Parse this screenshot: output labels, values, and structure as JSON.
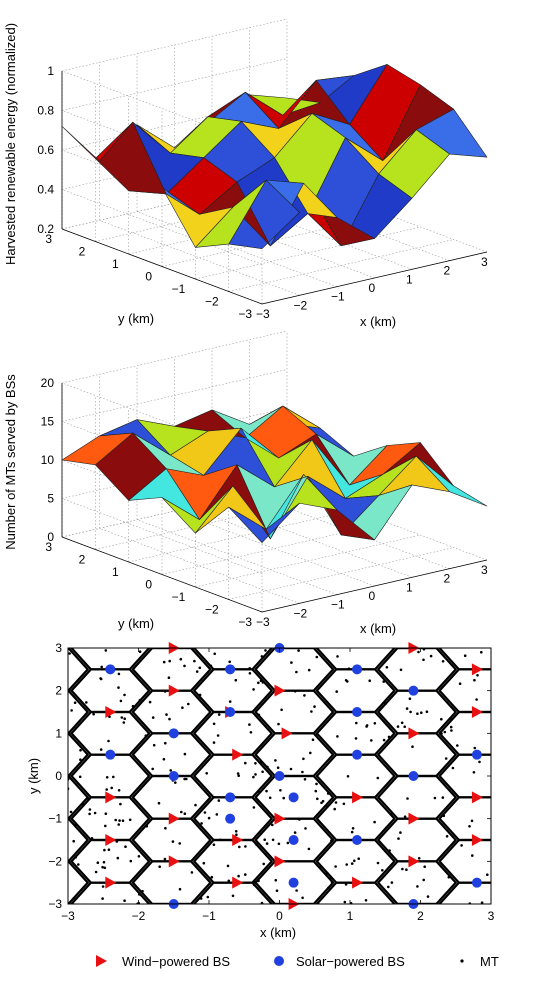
{
  "chart_data": [
    {
      "type": "surface",
      "zlabel": "Harvested renewable energy (normalized)",
      "xlabel": "x (km)",
      "ylabel": "y (km)",
      "xlim": [
        -3,
        3
      ],
      "ylim": [
        -3,
        3
      ],
      "zlim": [
        0.2,
        1
      ],
      "xticks": [
        "−3",
        "−2",
        "−1",
        "0",
        "1",
        "2",
        "3"
      ],
      "yticks": [
        "−3",
        "−2",
        "−1",
        "0",
        "1",
        "2",
        "3"
      ],
      "zticks": [
        "0.2",
        "0.4",
        "0.6",
        "0.8",
        "1"
      ],
      "grid": true,
      "x": [
        -3,
        -2,
        -1,
        0,
        1,
        2,
        3
      ],
      "y": [
        -3,
        -2,
        -1,
        0,
        1,
        2,
        3
      ],
      "z": [
        [
          0.48,
          0.62,
          0.55,
          0.4,
          0.56,
          0.74,
          0.68
        ],
        [
          0.44,
          0.72,
          0.66,
          0.3,
          0.62,
          0.8,
          0.86
        ],
        [
          0.36,
          0.52,
          0.28,
          0.4,
          0.74,
          0.58,
          0.92
        ],
        [
          0.6,
          0.42,
          0.54,
          0.62,
          0.8,
          0.7,
          0.96
        ],
        [
          0.52,
          0.46,
          0.6,
          0.74,
          0.66,
          0.86,
          0.84
        ],
        [
          0.62,
          0.76,
          0.56,
          0.7,
          0.78,
          0.62,
          0.64
        ],
        [
          0.72,
          0.5,
          0.64,
          0.48,
          0.58,
          0.66,
          0.6
        ]
      ],
      "palette": [
        "#2e50d8",
        "#3a6ee8",
        "#1f3bc8",
        "#f2d21a",
        "#cc0000",
        "#b6e21e",
        "#8a0c0c"
      ]
    },
    {
      "type": "surface",
      "zlabel": "Number of MTs served by BSs",
      "xlabel": "x (km)",
      "ylabel": "y (km)",
      "xlim": [
        -3,
        3
      ],
      "ylim": [
        -3,
        3
      ],
      "zlim": [
        0,
        20
      ],
      "xticks": [
        "−3",
        "−2",
        "−1",
        "0",
        "1",
        "2",
        "3"
      ],
      "yticks": [
        "−3",
        "−2",
        "−1",
        "0",
        "1",
        "2",
        "3"
      ],
      "zticks": [
        "0",
        "5",
        "10",
        "15",
        "20"
      ],
      "grid": true,
      "x": [
        -3,
        -2,
        -1,
        0,
        1,
        2,
        3
      ],
      "y": [
        -3,
        -2,
        -1,
        0,
        1,
        2,
        3
      ],
      "z": [
        [
          9,
          13,
          11,
          6,
          12,
          10,
          7
        ],
        [
          12,
          8,
          14,
          5,
          9,
          13,
          8
        ],
        [
          7,
          12,
          4,
          11,
          7,
          9,
          12
        ],
        [
          10,
          6,
          12,
          8,
          13,
          6,
          10
        ],
        [
          8,
          11,
          9,
          14,
          9,
          11,
          7
        ],
        [
          11,
          14,
          10,
          12,
          10,
          13,
          9
        ],
        [
          10,
          12,
          13,
          11,
          12,
          9,
          8
        ]
      ],
      "palette": [
        "#2e50d8",
        "#44e6e0",
        "#7ae8c8",
        "#b6e21e",
        "#ff5a10",
        "#f2c818",
        "#8a0c0c"
      ]
    },
    {
      "type": "scatter",
      "xlabel": "x (km)",
      "ylabel": "y (km)",
      "xlim": [
        -3,
        3
      ],
      "ylim": [
        -3,
        3
      ],
      "xticks": [
        -3,
        -2,
        -1,
        0,
        1,
        2,
        3
      ],
      "yticks": [
        -3,
        -2,
        -1,
        0,
        1,
        2,
        3
      ],
      "xtick_labels": [
        "−3",
        "−2",
        "−1",
        "0",
        "1",
        "2",
        "3"
      ],
      "ytick_labels": [
        "−3",
        "−2",
        "−1",
        "0",
        "1",
        "2",
        "3"
      ],
      "hex_radius_km": 0.577,
      "series": [
        {
          "name": "Wind−powered BS",
          "color": "#e81010",
          "marker": "triangle",
          "points": [
            [
              -1.5,
              3
            ],
            [
              1.9,
              3
            ],
            [
              -1.5,
              2
            ],
            [
              0,
              2
            ],
            [
              2.8,
              2.5
            ],
            [
              -2.4,
              1.5
            ],
            [
              -0.7,
              1.5
            ],
            [
              2.8,
              1.5
            ],
            [
              -0.6,
              0.5
            ],
            [
              1.9,
              1
            ],
            [
              0.1,
              1
            ],
            [
              -2.4,
              -0.5
            ],
            [
              1.1,
              -0.5
            ],
            [
              2.8,
              -0.5
            ],
            [
              -1.5,
              -1
            ],
            [
              0,
              -1
            ],
            [
              1.9,
              -1
            ],
            [
              -2.4,
              -1.5
            ],
            [
              -0.6,
              -1.5
            ],
            [
              2.8,
              -1.5
            ],
            [
              -1.5,
              -2
            ],
            [
              0,
              -2
            ],
            [
              1.9,
              -2
            ],
            [
              -2.4,
              -2.5
            ],
            [
              -0.6,
              -2.5
            ],
            [
              1.1,
              -2.5
            ],
            [
              0.2,
              -3
            ]
          ]
        },
        {
          "name": "Solar−powered BS",
          "color": "#2040e0",
          "marker": "circle",
          "points": [
            [
              0,
              3
            ],
            [
              -2.4,
              2.5
            ],
            [
              -0.7,
              2.5
            ],
            [
              1.1,
              2.5
            ],
            [
              -0.7,
              1.5
            ],
            [
              1.1,
              1.5
            ],
            [
              1.9,
              2
            ],
            [
              -1.5,
              1
            ],
            [
              0,
              0
            ],
            [
              -2.4,
              0.5
            ],
            [
              1.1,
              0.5
            ],
            [
              2.8,
              0.5
            ],
            [
              -1.5,
              0
            ],
            [
              1.9,
              0
            ],
            [
              -0.7,
              -0.5
            ],
            [
              0.2,
              -0.5
            ],
            [
              1.1,
              -1.5
            ],
            [
              0.2,
              -1.5
            ],
            [
              -0.7,
              -1.0
            ],
            [
              0.2,
              -2.5
            ],
            [
              2.8,
              -2.5
            ],
            [
              -1.5,
              -3
            ],
            [
              1.9,
              -3
            ]
          ]
        },
        {
          "name": "MT",
          "color": "#000000",
          "marker": "dot"
        }
      ]
    }
  ]
}
